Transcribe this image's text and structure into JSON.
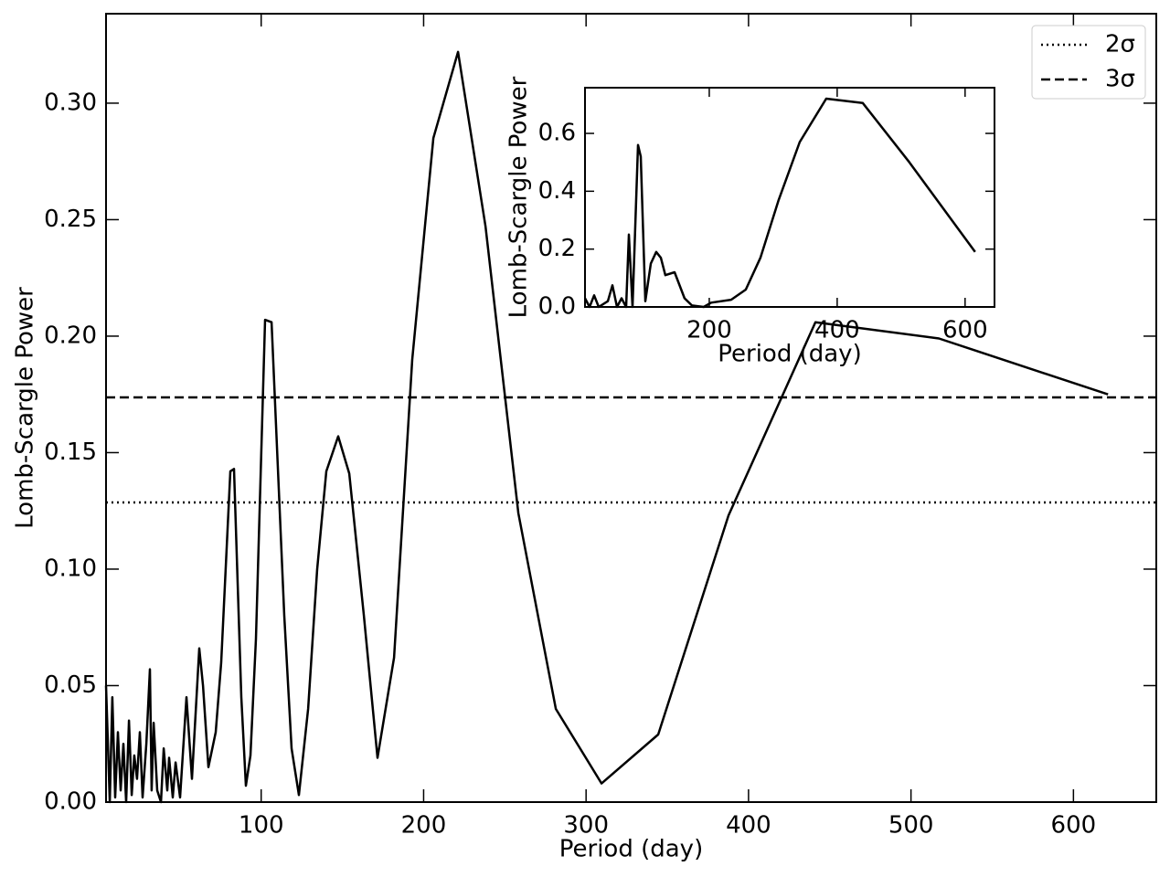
{
  "chart_data": [
    {
      "type": "line",
      "xlabel": "Period (day)",
      "ylabel": "Lomb-Scargle Power",
      "xlim": [
        4.5,
        651
      ],
      "ylim": [
        0,
        0.3384
      ],
      "xticks": [
        100,
        200,
        300,
        400,
        500,
        600
      ],
      "yticks": [
        {
          "value": 0,
          "label": "0.00"
        },
        0.05,
        {
          "value": 0.1,
          "label": "0.10"
        },
        0.15,
        {
          "value": 0.2,
          "label": "0.20"
        },
        0.25,
        {
          "value": 0.3,
          "label": "0.30"
        }
      ],
      "legend": "upper right",
      "reference_lines": [
        {
          "name": "2σ",
          "value": 0.1286,
          "style": "dotted",
          "color": "#000000"
        },
        {
          "name": "3σ",
          "value": 0.1737,
          "style": "dashed",
          "color": "#000000"
        }
      ],
      "series": [
        {
          "color": "#000000",
          "x": [
            4.5,
            6.8,
            8.4,
            10.1,
            11.8,
            13.5,
            15.2,
            16.9,
            18.6,
            20.3,
            21.9,
            23.6,
            25.3,
            27.0,
            29.3,
            31.5,
            32.6,
            33.8,
            36.0,
            38.3,
            40.0,
            42.2,
            43.3,
            45.6,
            47.3,
            50.1,
            54.0,
            57.4,
            61.9,
            64.2,
            67.5,
            72.0,
            75.4,
            81.0,
            83.3,
            87.8,
            90.6,
            93.4,
            96.8,
            102.4,
            106.4,
            114.2,
            118.7,
            123.2,
            128.9,
            134.5,
            140.1,
            147.4,
            154.2,
            163.2,
            171.6,
            181.8,
            193.0,
            206.0,
            221.2,
            238.1,
            258.3,
            281.4,
            309.5,
            344.4,
            387.7,
            441.2,
            517.2,
            621.3
          ],
          "values": [
            0.05,
            0.0,
            0.045,
            0.002,
            0.03,
            0.005,
            0.025,
            0.0,
            0.035,
            0.003,
            0.02,
            0.01,
            0.03,
            0.002,
            0.025,
            0.057,
            0.005,
            0.034,
            0.005,
            0.0,
            0.023,
            0.005,
            0.019,
            0.002,
            0.017,
            0.002,
            0.045,
            0.01,
            0.066,
            0.05,
            0.015,
            0.03,
            0.06,
            0.142,
            0.143,
            0.045,
            0.007,
            0.02,
            0.07,
            0.207,
            0.206,
            0.08,
            0.023,
            0.003,
            0.04,
            0.1,
            0.142,
            0.157,
            0.141,
            0.08,
            0.019,
            0.062,
            0.19,
            0.285,
            0.322,
            0.247,
            0.124,
            0.04,
            0.008,
            0.029,
            0.123,
            0.206,
            0.199,
            0.175
          ]
        }
      ]
    },
    {
      "type": "line",
      "xlabel": "Period (day)",
      "ylabel": "Lomb-Scargle Power",
      "xlim": [
        5.7,
        646
      ],
      "ylim": [
        0,
        0.758
      ],
      "xticks": [
        200,
        400,
        600
      ],
      "yticks": [
        {
          "value": 0,
          "label": "0.0"
        },
        0.2,
        0.4,
        0.6
      ],
      "series": [
        {
          "color": "#000000",
          "x": [
            5.7,
            12.9,
            20.0,
            27.1,
            41.4,
            48.6,
            55.7,
            62.9,
            70.0,
            74.3,
            80.0,
            88.6,
            92.9,
            100.0,
            108.6,
            117.1,
            124.3,
            131.4,
            145.7,
            161.4,
            172.9,
            191.4,
            202.9,
            234.3,
            257.1,
            280.0,
            308.6,
            341.4,
            382.9,
            440.0,
            512.9,
            615.7
          ],
          "values": [
            0.03,
            0.0,
            0.04,
            0.0,
            0.02,
            0.075,
            0.0,
            0.03,
            0.0,
            0.25,
            0.0,
            0.56,
            0.52,
            0.02,
            0.15,
            0.19,
            0.17,
            0.11,
            0.12,
            0.03,
            0.005,
            0.0,
            0.015,
            0.025,
            0.06,
            0.17,
            0.37,
            0.57,
            0.72,
            0.705,
            0.5,
            0.19
          ]
        }
      ]
    }
  ]
}
